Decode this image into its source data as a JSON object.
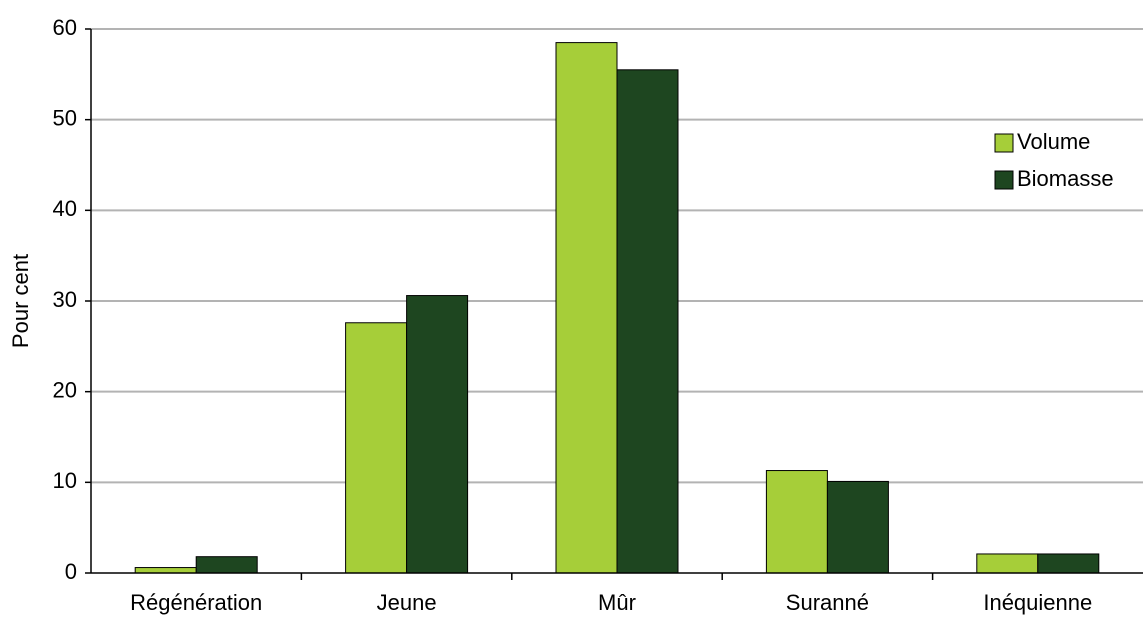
{
  "chart_data": {
    "type": "bar",
    "y_label": "Pour cent",
    "categories": [
      "Régénération",
      "Jeune",
      "Mûr",
      "Suranné",
      "Inéquienne"
    ],
    "series": [
      {
        "name": "Volume",
        "color": "#a6ce39",
        "values": [
          0.6,
          27.6,
          58.5,
          11.3,
          2.1
        ]
      },
      {
        "name": "Biomasse",
        "color": "#1e4620",
        "values": [
          1.8,
          30.6,
          55.5,
          10.1,
          2.1
        ]
      }
    ],
    "ylim": [
      0,
      60
    ],
    "yticks": [
      0,
      10,
      20,
      30,
      40,
      50,
      60
    ],
    "grid": true,
    "legend": "right"
  }
}
